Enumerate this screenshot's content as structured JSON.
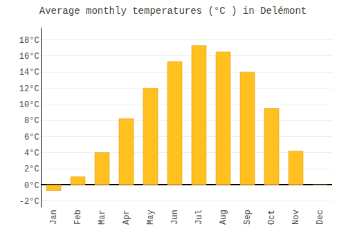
{
  "chart_data": {
    "type": "bar",
    "title": "Average monthly temperatures (°C ) in Delémont",
    "categories": [
      "Jan",
      "Feb",
      "Mar",
      "Apr",
      "May",
      "Jun",
      "Jul",
      "Aug",
      "Sep",
      "Oct",
      "Nov",
      "Dec"
    ],
    "values": [
      -0.7,
      1.0,
      4.0,
      8.2,
      12.0,
      15.3,
      17.3,
      16.5,
      14.0,
      9.5,
      4.2,
      0.0
    ],
    "color": "#FFC020",
    "ylim": [
      -2.8,
      19.5
    ],
    "yticks": [
      {
        "value": -2,
        "label": "-2°C"
      },
      {
        "value": 0,
        "label": "0°C"
      },
      {
        "value": 2,
        "label": "2°C"
      },
      {
        "value": 4,
        "label": "4°C"
      },
      {
        "value": 6,
        "label": "6°C"
      },
      {
        "value": 8,
        "label": "8°C"
      },
      {
        "value": 10,
        "label": "10°C"
      },
      {
        "value": 12,
        "label": "12°C"
      },
      {
        "value": 14,
        "label": "14°C"
      },
      {
        "value": 16,
        "label": "16°C"
      },
      {
        "value": 18,
        "label": "18°C"
      }
    ],
    "grid": true
  }
}
